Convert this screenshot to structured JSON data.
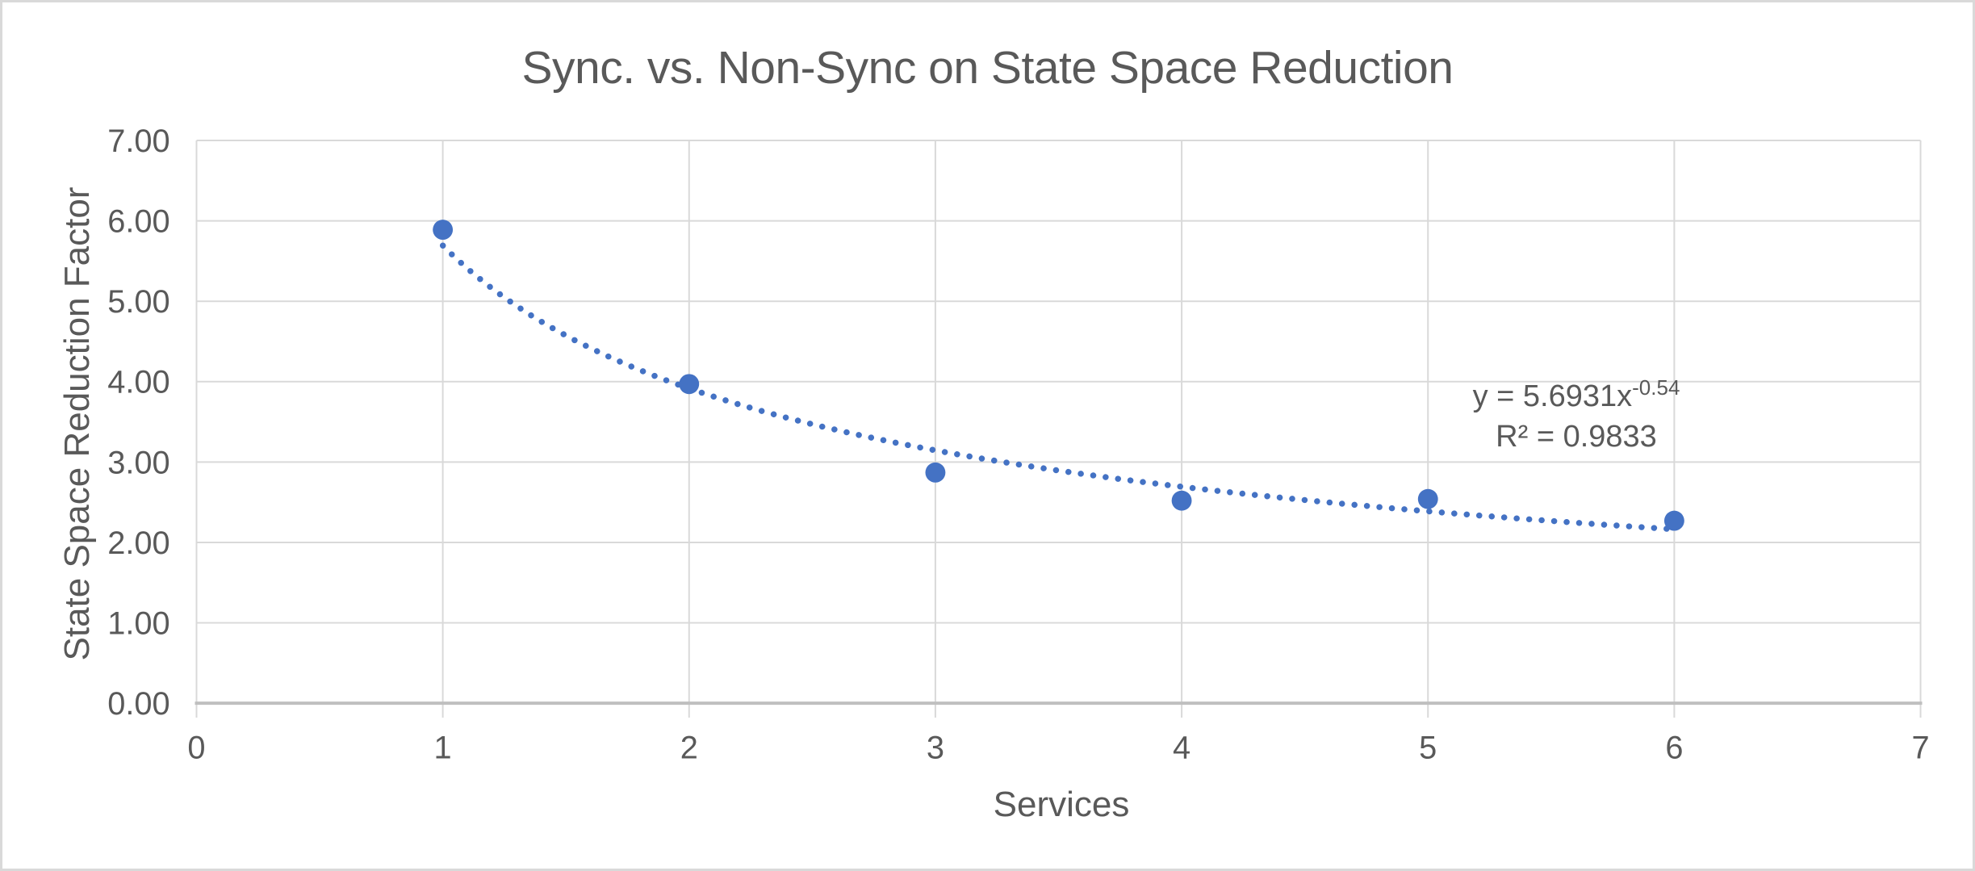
{
  "chart_data": {
    "type": "scatter",
    "title": "Sync. vs. Non-Sync on State Space Reduction",
    "xlabel": "Services",
    "ylabel": "State Space Reduction Factor",
    "x": [
      1,
      2,
      3,
      4,
      5,
      6
    ],
    "y": [
      5.89,
      3.97,
      2.87,
      2.52,
      2.54,
      2.27
    ],
    "xlim": [
      0,
      7
    ],
    "ylim": [
      0,
      7
    ],
    "x_tick_labels": [
      "0",
      "1",
      "2",
      "3",
      "4",
      "5",
      "6",
      "7"
    ],
    "y_tick_labels": [
      "0.00",
      "1.00",
      "2.00",
      "3.00",
      "4.00",
      "5.00",
      "6.00",
      "7.00"
    ],
    "grid": "major-both",
    "legend": "none",
    "trendline": {
      "type": "power",
      "coefficient": 5.6931,
      "exponent": -0.54,
      "style": "dotted",
      "x_start": 1,
      "x_end": 6,
      "equation_base_text": "y = 5.6931x",
      "equation_exponent_text": "-0.54",
      "r_squared_text": "R² = 0.9833"
    },
    "colors": {
      "marker": "#4472C4",
      "trendline": "#4472C4",
      "gridline": "#D9D9D9",
      "axis_line": "#BFBFBF",
      "text": "#595959",
      "background": "#FFFFFF",
      "border": "#D9D9D9"
    }
  }
}
